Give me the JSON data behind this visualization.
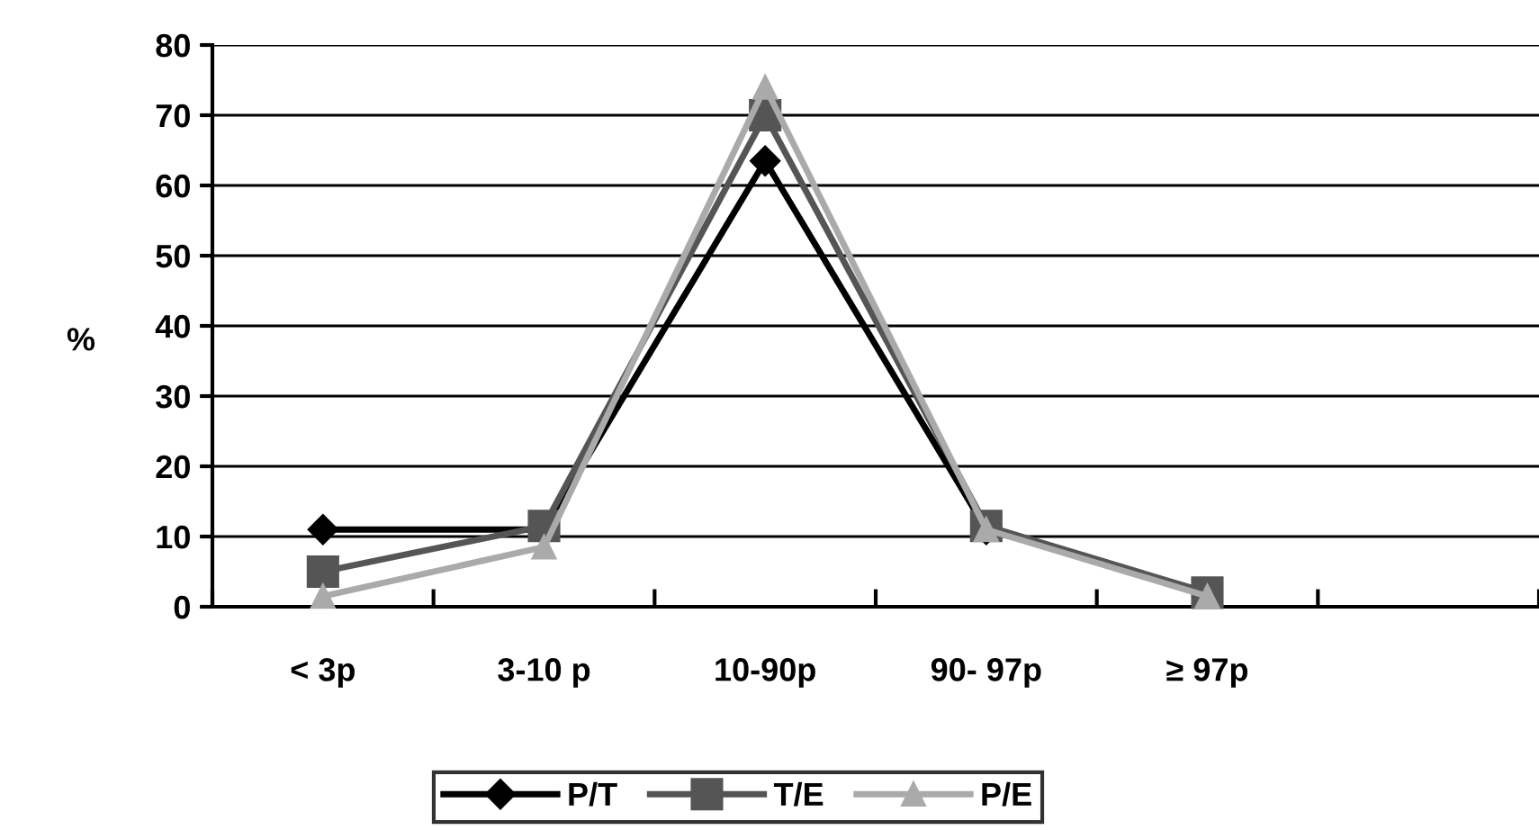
{
  "chart_data": {
    "type": "line",
    "ylabel": "%",
    "categories": [
      "< 3p",
      "3-10 p",
      "10-90p",
      "90- 97p",
      "≥ 97p",
      null
    ],
    "series": [
      {
        "name": "P/T",
        "color": "#000000",
        "marker": "diamond",
        "values": [
          11,
          11,
          63.5,
          11,
          2,
          null
        ]
      },
      {
        "name": "T/E",
        "color": "#555555",
        "marker": "square",
        "values": [
          5,
          11.5,
          70,
          11.5,
          2,
          null
        ]
      },
      {
        "name": "P/E",
        "color": "#aaaaaa",
        "marker": "triangle",
        "values": [
          1.5,
          8.5,
          74,
          11,
          1.5,
          null
        ]
      }
    ],
    "ylim": [
      0,
      80
    ],
    "yticks": [
      0,
      10,
      20,
      30,
      40,
      50,
      60,
      70,
      80
    ],
    "grid": "y",
    "legend": "bottom"
  }
}
